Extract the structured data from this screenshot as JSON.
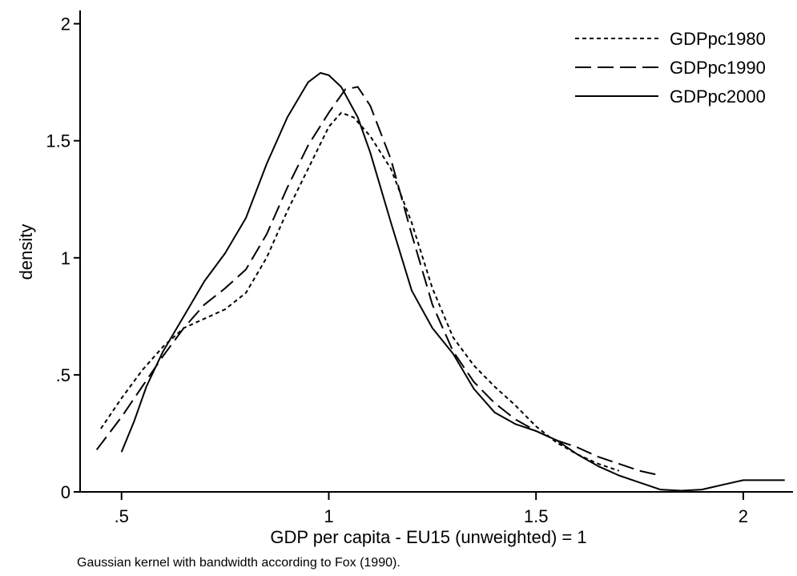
{
  "chart_data": {
    "type": "line",
    "xlabel": "GDP per capita -  EU15 (unweighted) = 1",
    "ylabel": "density",
    "xlim": [
      0.4,
      2.12
    ],
    "ylim": [
      0,
      2.05
    ],
    "xticks": [
      ".5",
      "1",
      "1.5",
      "2"
    ],
    "xtick_values": [
      0.5,
      1,
      1.5,
      2
    ],
    "yticks": [
      "0",
      ".5",
      "1",
      "1.5",
      "2"
    ],
    "ytick_values": [
      0,
      0.5,
      1,
      1.5,
      2
    ],
    "grid": false,
    "legend_position": "top-right",
    "note": "Gaussian kernel with bandwidth according to Fox (1990).",
    "series": [
      {
        "name": "GDPpc1980",
        "style": "dotted",
        "points": [
          [
            0.45,
            0.27
          ],
          [
            0.5,
            0.4
          ],
          [
            0.55,
            0.52
          ],
          [
            0.6,
            0.62
          ],
          [
            0.65,
            0.7
          ],
          [
            0.7,
            0.74
          ],
          [
            0.75,
            0.78
          ],
          [
            0.8,
            0.85
          ],
          [
            0.85,
            1.0
          ],
          [
            0.9,
            1.2
          ],
          [
            0.95,
            1.38
          ],
          [
            1.0,
            1.56
          ],
          [
            1.03,
            1.62
          ],
          [
            1.06,
            1.6
          ],
          [
            1.1,
            1.52
          ],
          [
            1.15,
            1.38
          ],
          [
            1.2,
            1.15
          ],
          [
            1.25,
            0.87
          ],
          [
            1.3,
            0.66
          ],
          [
            1.35,
            0.54
          ],
          [
            1.4,
            0.45
          ],
          [
            1.45,
            0.37
          ],
          [
            1.5,
            0.28
          ],
          [
            1.55,
            0.21
          ],
          [
            1.6,
            0.16
          ],
          [
            1.65,
            0.12
          ],
          [
            1.7,
            0.09
          ]
        ]
      },
      {
        "name": "GDPpc1990",
        "style": "dashed",
        "points": [
          [
            0.44,
            0.18
          ],
          [
            0.5,
            0.32
          ],
          [
            0.55,
            0.45
          ],
          [
            0.6,
            0.58
          ],
          [
            0.65,
            0.7
          ],
          [
            0.7,
            0.8
          ],
          [
            0.75,
            0.87
          ],
          [
            0.8,
            0.95
          ],
          [
            0.85,
            1.1
          ],
          [
            0.9,
            1.3
          ],
          [
            0.95,
            1.48
          ],
          [
            1.0,
            1.62
          ],
          [
            1.04,
            1.72
          ],
          [
            1.07,
            1.73
          ],
          [
            1.1,
            1.65
          ],
          [
            1.15,
            1.42
          ],
          [
            1.2,
            1.1
          ],
          [
            1.25,
            0.8
          ],
          [
            1.3,
            0.6
          ],
          [
            1.35,
            0.47
          ],
          [
            1.4,
            0.38
          ],
          [
            1.45,
            0.31
          ],
          [
            1.5,
            0.26
          ],
          [
            1.55,
            0.22
          ],
          [
            1.6,
            0.19
          ],
          [
            1.65,
            0.15
          ],
          [
            1.7,
            0.12
          ],
          [
            1.75,
            0.09
          ],
          [
            1.8,
            0.07
          ]
        ]
      },
      {
        "name": "GDPpc2000",
        "style": "solid",
        "points": [
          [
            0.5,
            0.17
          ],
          [
            0.53,
            0.3
          ],
          [
            0.56,
            0.45
          ],
          [
            0.6,
            0.6
          ],
          [
            0.65,
            0.75
          ],
          [
            0.7,
            0.9
          ],
          [
            0.75,
            1.02
          ],
          [
            0.8,
            1.17
          ],
          [
            0.85,
            1.4
          ],
          [
            0.9,
            1.6
          ],
          [
            0.95,
            1.75
          ],
          [
            0.98,
            1.79
          ],
          [
            1.0,
            1.78
          ],
          [
            1.03,
            1.73
          ],
          [
            1.07,
            1.6
          ],
          [
            1.1,
            1.45
          ],
          [
            1.15,
            1.15
          ],
          [
            1.2,
            0.86
          ],
          [
            1.25,
            0.7
          ],
          [
            1.3,
            0.59
          ],
          [
            1.35,
            0.44
          ],
          [
            1.4,
            0.34
          ],
          [
            1.45,
            0.29
          ],
          [
            1.5,
            0.26
          ],
          [
            1.55,
            0.22
          ],
          [
            1.6,
            0.16
          ],
          [
            1.65,
            0.11
          ],
          [
            1.7,
            0.07
          ],
          [
            1.75,
            0.04
          ],
          [
            1.8,
            0.01
          ],
          [
            1.85,
            0.005
          ],
          [
            1.9,
            0.01
          ],
          [
            1.95,
            0.03
          ],
          [
            2.0,
            0.05
          ],
          [
            2.05,
            0.05
          ],
          [
            2.1,
            0.05
          ]
        ]
      }
    ]
  }
}
